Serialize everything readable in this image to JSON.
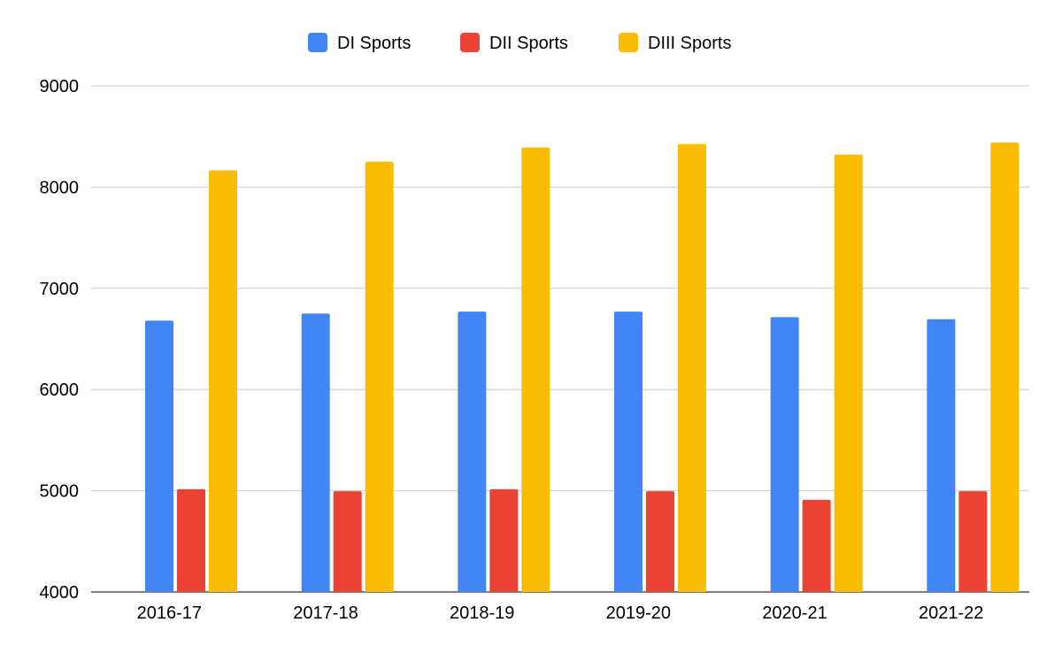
{
  "chart_data": {
    "type": "bar",
    "title": "",
    "xlabel": "",
    "ylabel": "",
    "categories": [
      "2016-17",
      "2017-18",
      "2018-19",
      "2019-20",
      "2020-21",
      "2021-22"
    ],
    "series": [
      {
        "name": "DI Sports",
        "color": "#4285F4",
        "values": [
          6680,
          6750,
          6770,
          6770,
          6715,
          6695
        ]
      },
      {
        "name": "DII Sports",
        "color": "#EA4335",
        "values": [
          5015,
          4995,
          5015,
          4995,
          4910,
          4995
        ]
      },
      {
        "name": "DIII Sports",
        "color": "#FBBC04",
        "values": [
          8165,
          8250,
          8390,
          8425,
          8320,
          8440
        ]
      }
    ],
    "ylim": [
      4000,
      9000
    ],
    "yticks": [
      4000,
      5000,
      6000,
      7000,
      8000,
      9000
    ],
    "grid": true,
    "legend": "top"
  }
}
